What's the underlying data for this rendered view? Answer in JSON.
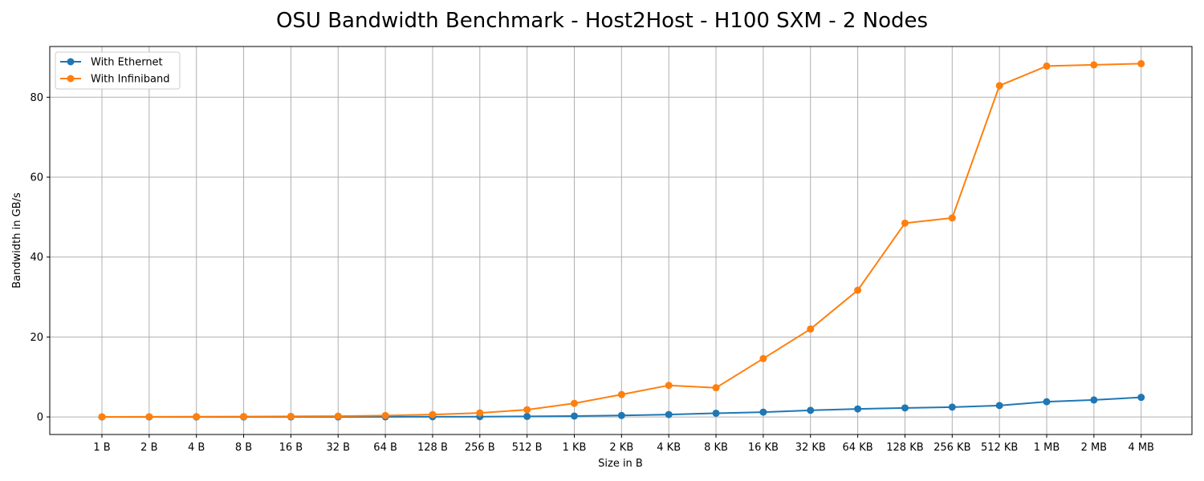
{
  "chart_data": {
    "type": "line",
    "title": "OSU Bandwidth Benchmark - Host2Host - H100 SXM - 2 Nodes",
    "xlabel": "Size in B",
    "ylabel": "Bandwidth in GB/s",
    "categories": [
      "1 B",
      "2 B",
      "4 B",
      "8 B",
      "16 B",
      "32 B",
      "64 B",
      "128 B",
      "256 B",
      "512 B",
      "1 KB",
      "2 KB",
      "4 KB",
      "8 KB",
      "16 KB",
      "32 KB",
      "64 KB",
      "128 KB",
      "256 KB",
      "512 KB",
      "1 MB",
      "2 MB",
      "4 MB"
    ],
    "yticks": [
      0,
      20,
      40,
      60,
      80
    ],
    "ylim": [
      -4.4,
      92.7
    ],
    "grid": true,
    "legend_position": "top-left",
    "series": [
      {
        "name": "With Ethernet",
        "color": "#1f77b4",
        "values": [
          0.0,
          0.0,
          0.0,
          0.0,
          0.01,
          0.01,
          0.02,
          0.04,
          0.07,
          0.13,
          0.22,
          0.36,
          0.6,
          0.92,
          1.2,
          1.65,
          2.0,
          2.25,
          2.45,
          2.85,
          3.8,
          4.25,
          4.9
        ]
      },
      {
        "name": "With Infiniband",
        "color": "#ff7f0e",
        "values": [
          0.02,
          0.04,
          0.07,
          0.1,
          0.15,
          0.2,
          0.35,
          0.6,
          1.0,
          1.8,
          3.4,
          5.6,
          7.9,
          7.3,
          14.6,
          22.0,
          31.7,
          48.5,
          49.8,
          82.9,
          87.8,
          88.1,
          88.4
        ]
      }
    ]
  }
}
